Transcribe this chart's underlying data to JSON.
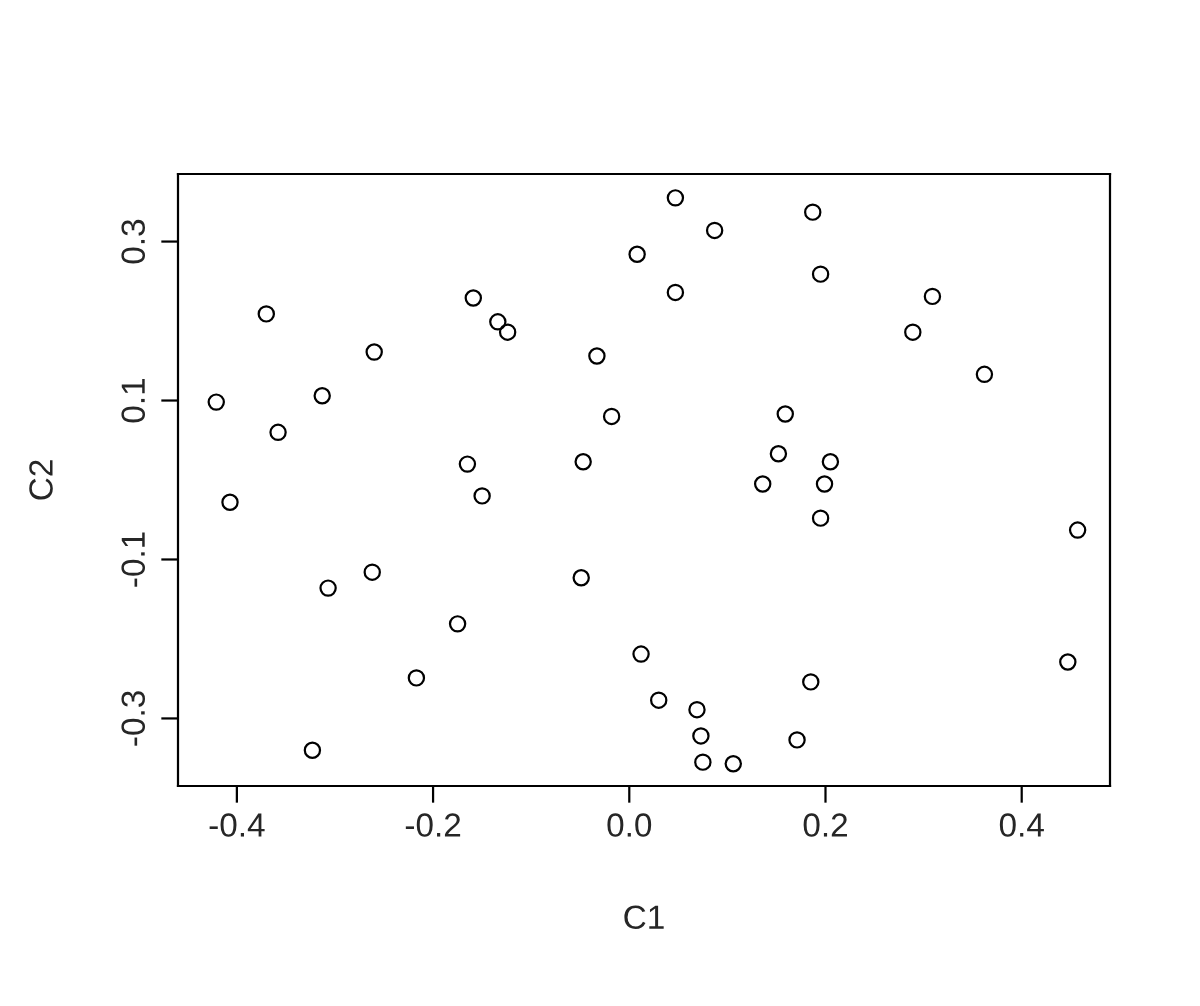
{
  "chart_data": {
    "type": "scatter",
    "xlabel": "C1",
    "ylabel": "C2",
    "marker": "circle",
    "grid": false,
    "xlim": [
      -0.46,
      0.49
    ],
    "ylim": [
      -0.385,
      0.385
    ],
    "xticks": [
      -0.4,
      -0.2,
      {
        "value": 0,
        "label": "0.0"
      },
      0.2,
      0.4
    ],
    "yticks": [
      -0.3,
      -0.1,
      0.1,
      0.3
    ],
    "series": [
      {
        "color": "#000000",
        "x": [
          -0.421,
          -0.407,
          -0.37,
          -0.358,
          -0.313,
          -0.307,
          -0.323,
          -0.26,
          -0.262,
          -0.217,
          -0.175,
          -0.159,
          -0.165,
          -0.15,
          -0.134,
          -0.124,
          -0.047,
          -0.049,
          -0.033,
          -0.018,
          0.008,
          0.012,
          0.03,
          0.047,
          0.047,
          0.069,
          0.073,
          0.075,
          0.087,
          0.106,
          0.136,
          0.152,
          0.159,
          0.171,
          0.185,
          0.187,
          0.195,
          0.195,
          0.199,
          0.205,
          0.289,
          0.309,
          0.362,
          0.447,
          0.457
        ],
        "values": [
          0.098,
          -0.028,
          0.209,
          0.06,
          0.106,
          -0.136,
          -0.34,
          0.161,
          -0.116,
          -0.249,
          -0.181,
          0.229,
          0.02,
          -0.02,
          0.199,
          0.186,
          0.023,
          -0.123,
          0.156,
          0.08,
          0.284,
          -0.219,
          -0.277,
          0.355,
          0.236,
          -0.289,
          -0.322,
          -0.355,
          0.314,
          -0.357,
          -0.005,
          0.033,
          0.083,
          -0.327,
          -0.254,
          0.337,
          0.259,
          -0.048,
          -0.005,
          0.023,
          0.186,
          0.231,
          0.133,
          -0.229,
          -0.063
        ]
      }
    ]
  }
}
